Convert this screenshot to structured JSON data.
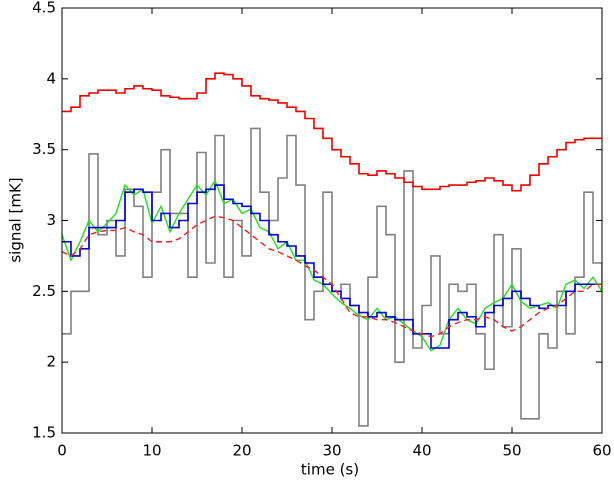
{
  "chart_data": {
    "type": "line",
    "xlabel": "time (s)",
    "ylabel": "signal [mK]",
    "x": [
      0,
      1,
      2,
      3,
      4,
      5,
      6,
      7,
      8,
      9,
      10,
      11,
      12,
      13,
      14,
      15,
      16,
      17,
      18,
      19,
      20,
      21,
      22,
      23,
      24,
      25,
      26,
      27,
      28,
      29,
      30,
      31,
      32,
      33,
      34,
      35,
      36,
      37,
      38,
      39,
      40,
      41,
      42,
      43,
      44,
      45,
      46,
      47,
      48,
      49,
      50,
      51,
      52,
      53,
      54,
      55,
      56,
      57,
      58,
      59,
      60
    ],
    "series": [
      {
        "color": "#808080",
        "style": "step",
        "dash": false,
        "values": [
          2.2,
          2.5,
          2.5,
          3.47,
          2.9,
          3.0,
          2.75,
          3.22,
          3.1,
          2.6,
          3.2,
          3.5,
          3.05,
          3.05,
          2.6,
          3.48,
          2.7,
          3.6,
          2.6,
          3.0,
          2.75,
          3.65,
          3.2,
          3.0,
          3.3,
          3.6,
          3.25,
          2.3,
          2.5,
          3.2,
          2.5,
          2.55,
          2.4,
          1.55,
          2.6,
          3.1,
          2.9,
          2.0,
          3.35,
          2.1,
          2.4,
          2.75,
          2.2,
          2.55,
          2.5,
          2.55,
          2.2,
          1.95,
          2.9,
          2.25,
          2.8,
          1.6,
          1.6,
          2.2,
          2.1,
          2.5,
          2.2,
          2.6,
          3.2,
          2.7,
          2.5
        ]
      },
      {
        "color": "#22dd22",
        "style": "line",
        "dash": false,
        "values": [
          2.9,
          2.72,
          2.85,
          3.0,
          2.92,
          2.98,
          3.05,
          3.25,
          3.18,
          3.22,
          2.98,
          3.1,
          2.92,
          3.05,
          3.15,
          3.25,
          3.18,
          3.28,
          3.12,
          3.15,
          3.05,
          3.08,
          2.95,
          2.92,
          2.8,
          2.85,
          2.72,
          2.72,
          2.58,
          2.55,
          2.48,
          2.42,
          2.38,
          2.33,
          2.3,
          2.38,
          2.3,
          2.32,
          2.27,
          2.22,
          2.18,
          2.08,
          2.12,
          2.3,
          2.38,
          2.3,
          2.27,
          2.38,
          2.42,
          2.45,
          2.55,
          2.43,
          2.38,
          2.4,
          2.42,
          2.38,
          2.55,
          2.58,
          2.52,
          2.6,
          2.5
        ]
      },
      {
        "color": "#0000cc",
        "style": "step",
        "dash": false,
        "values": [
          2.85,
          2.75,
          2.8,
          2.95,
          2.95,
          2.95,
          3.0,
          3.2,
          3.22,
          3.2,
          3.0,
          3.05,
          2.95,
          3.0,
          3.12,
          3.2,
          3.22,
          3.25,
          3.15,
          3.12,
          3.1,
          3.05,
          3.0,
          2.9,
          2.85,
          2.82,
          2.75,
          2.7,
          2.6,
          2.55,
          2.5,
          2.45,
          2.4,
          2.35,
          2.32,
          2.35,
          2.32,
          2.3,
          2.3,
          2.2,
          2.2,
          2.1,
          2.1,
          2.3,
          2.35,
          2.32,
          2.25,
          2.35,
          2.4,
          2.45,
          2.5,
          2.45,
          2.4,
          2.38,
          2.4,
          2.4,
          2.5,
          2.55,
          2.55,
          2.55,
          2.55
        ]
      },
      {
        "color": "#ee2222",
        "style": "line",
        "dash": true,
        "values": [
          2.78,
          2.75,
          2.8,
          2.9,
          2.92,
          2.93,
          2.93,
          2.95,
          2.92,
          2.9,
          2.85,
          2.85,
          2.85,
          2.87,
          2.92,
          2.97,
          3.0,
          3.03,
          3.02,
          3.0,
          2.95,
          2.9,
          2.85,
          2.8,
          2.78,
          2.75,
          2.72,
          2.68,
          2.65,
          2.6,
          2.55,
          2.45,
          2.35,
          2.32,
          2.32,
          2.3,
          2.3,
          2.28,
          2.25,
          2.22,
          2.2,
          2.18,
          2.2,
          2.25,
          2.28,
          2.3,
          2.3,
          2.32,
          2.3,
          2.25,
          2.22,
          2.25,
          2.3,
          2.35,
          2.38,
          2.4,
          2.45,
          2.5,
          2.5,
          2.55,
          2.55
        ]
      },
      {
        "color": "#ee0000",
        "style": "step",
        "dash": false,
        "values": [
          3.77,
          3.8,
          3.88,
          3.9,
          3.92,
          3.92,
          3.9,
          3.93,
          3.95,
          3.93,
          3.92,
          3.88,
          3.87,
          3.86,
          3.86,
          3.9,
          4.0,
          4.04,
          4.03,
          4.0,
          3.95,
          3.88,
          3.86,
          3.85,
          3.83,
          3.8,
          3.77,
          3.72,
          3.65,
          3.58,
          3.5,
          3.45,
          3.4,
          3.33,
          3.32,
          3.35,
          3.33,
          3.3,
          3.27,
          3.24,
          3.22,
          3.22,
          3.24,
          3.25,
          3.25,
          3.27,
          3.28,
          3.3,
          3.28,
          3.25,
          3.21,
          3.25,
          3.32,
          3.4,
          3.45,
          3.5,
          3.55,
          3.57,
          3.58,
          3.58,
          3.58
        ]
      }
    ],
    "xlim": [
      0,
      60
    ],
    "xticks": [
      0,
      10,
      20,
      30,
      40,
      50,
      60
    ],
    "ylim": [
      1.5,
      4.5
    ],
    "yticks": [
      1.5,
      2,
      2.5,
      3,
      3.5,
      4,
      4.5
    ],
    "grid": false
  }
}
